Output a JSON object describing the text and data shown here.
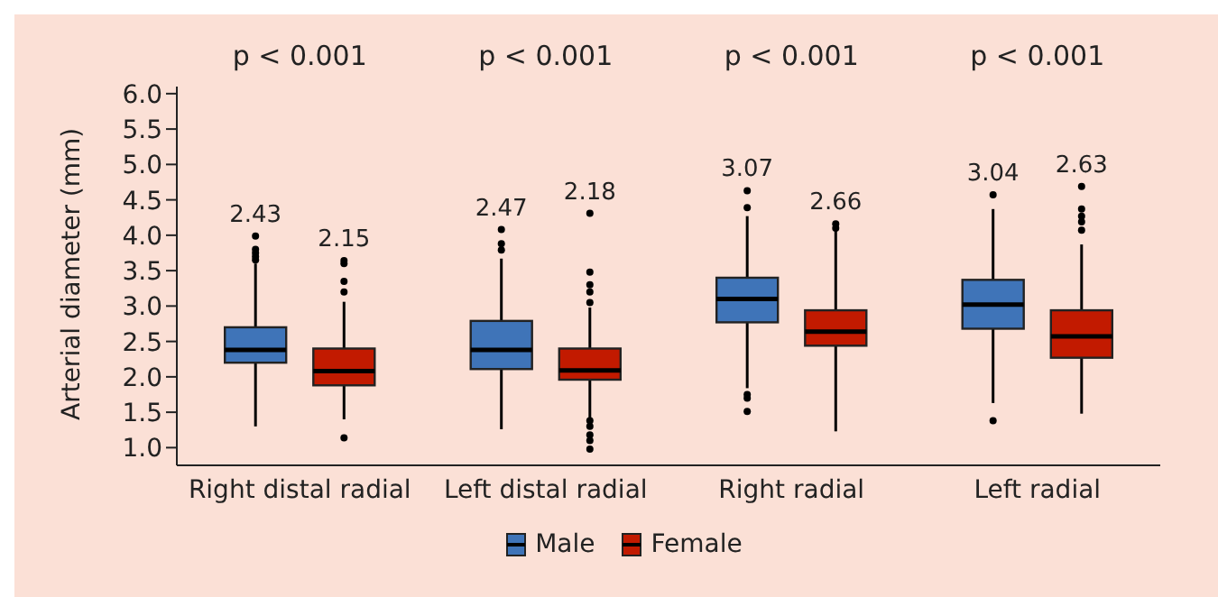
{
  "chart_data": {
    "type": "box",
    "ylabel": "Arterial diameter (mm)",
    "categories": [
      "Right distal radial",
      "Left distal radial",
      "Right radial",
      "Left radial"
    ],
    "ylim": [
      0.75,
      6.1
    ],
    "yticks": [
      {
        "value": 1,
        "label": "1.0"
      },
      1.5,
      {
        "value": 2,
        "label": "2.0"
      },
      2.5,
      {
        "value": 3,
        "label": "3.0"
      },
      3.5,
      {
        "value": 4,
        "label": "4.0"
      },
      4.5,
      {
        "value": 5,
        "label": "5.0"
      },
      5.5,
      {
        "value": 6,
        "label": "6.0"
      }
    ],
    "legend": "bottom",
    "annotations": [
      "p < 0.001",
      "p < 0.001",
      "p < 0.001",
      "p < 0.001"
    ],
    "series": [
      {
        "name": "Male",
        "color": "#3f74b8",
        "value_labels": [
          "2.43",
          "2.47",
          "3.07",
          "3.04"
        ],
        "boxes": [
          {
            "low": 1.3,
            "q1": 2.2,
            "median": 2.38,
            "q3": 2.7,
            "high": 3.6,
            "outliers": [
              3.65,
              3.7,
              3.75,
              3.8,
              3.99
            ]
          },
          {
            "low": 1.26,
            "q1": 2.11,
            "median": 2.38,
            "q3": 2.79,
            "high": 3.67,
            "outliers": [
              3.79,
              3.88,
              4.08
            ]
          },
          {
            "low": 1.84,
            "q1": 2.77,
            "median": 3.1,
            "q3": 3.4,
            "high": 4.27,
            "outliers": [
              1.75,
              1.7,
              1.51,
              4.39,
              4.63
            ]
          },
          {
            "low": 1.63,
            "q1": 2.68,
            "median": 3.02,
            "q3": 3.37,
            "high": 4.37,
            "outliers": [
              1.38,
              4.57
            ]
          }
        ]
      },
      {
        "name": "Female",
        "color": "#c21a00",
        "value_labels": [
          "2.15",
          "2.18",
          "2.66",
          "2.63"
        ],
        "boxes": [
          {
            "low": 1.4,
            "q1": 1.88,
            "median": 2.08,
            "q3": 2.4,
            "high": 3.06,
            "outliers": [
              1.14,
              3.2,
              3.35,
              3.6,
              3.64
            ]
          },
          {
            "low": 1.42,
            "q1": 1.96,
            "median": 2.09,
            "q3": 2.4,
            "high": 2.98,
            "outliers": [
              0.98,
              1.1,
              1.18,
              1.3,
              1.38,
              3.05,
              3.2,
              3.3,
              3.48,
              4.31
            ]
          },
          {
            "low": 1.23,
            "q1": 2.44,
            "median": 2.64,
            "q3": 2.94,
            "high": 4.07,
            "outliers": [
              4.1,
              4.16
            ]
          },
          {
            "low": 1.48,
            "q1": 2.27,
            "median": 2.57,
            "q3": 2.94,
            "high": 3.87,
            "outliers": [
              4.07,
              4.19,
              4.27,
              4.37,
              4.69
            ]
          }
        ]
      }
    ]
  }
}
